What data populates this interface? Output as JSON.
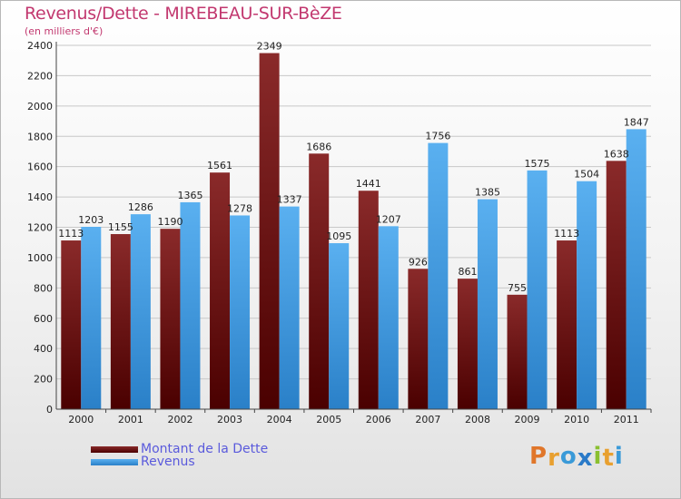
{
  "header": {
    "title": "Revenus/Dette - MIREBEAU-SUR-BèZE",
    "subtitle": "(en milliers d'€)"
  },
  "legend": {
    "items": [
      {
        "label": "Montant de la Dette",
        "color": "#7a1515"
      },
      {
        "label": "Revenus",
        "color": "#4aa3e8"
      }
    ]
  },
  "logo": {
    "text": "Proxiti",
    "colors": [
      "#e0762a",
      "#e8a030",
      "#3a9ad8",
      "#2a7ac8",
      "#8ac030",
      "#e8a030",
      "#3a9ad8"
    ]
  },
  "chart_data": {
    "type": "bar",
    "categories": [
      "2000",
      "2001",
      "2002",
      "2003",
      "2004",
      "2005",
      "2006",
      "2007",
      "2008",
      "2009",
      "2010",
      "2011"
    ],
    "series": [
      {
        "name": "Montant de la Dette",
        "values": [
          1113,
          1155,
          1190,
          1561,
          2349,
          1686,
          1441,
          926,
          861,
          755,
          1113,
          1638
        ],
        "color": "#7a1515"
      },
      {
        "name": "Revenus",
        "values": [
          1203,
          1286,
          1365,
          1278,
          1337,
          1095,
          1207,
          1756,
          1385,
          1575,
          1504,
          1847
        ],
        "color": "#4aa3e8"
      }
    ],
    "yticks": [
      0,
      200,
      400,
      600,
      800,
      1000,
      1200,
      1400,
      1600,
      1800,
      2000,
      2200,
      2400
    ],
    "ylim": [
      0,
      2400
    ],
    "grid": true,
    "legend_position": "bottom-left"
  }
}
